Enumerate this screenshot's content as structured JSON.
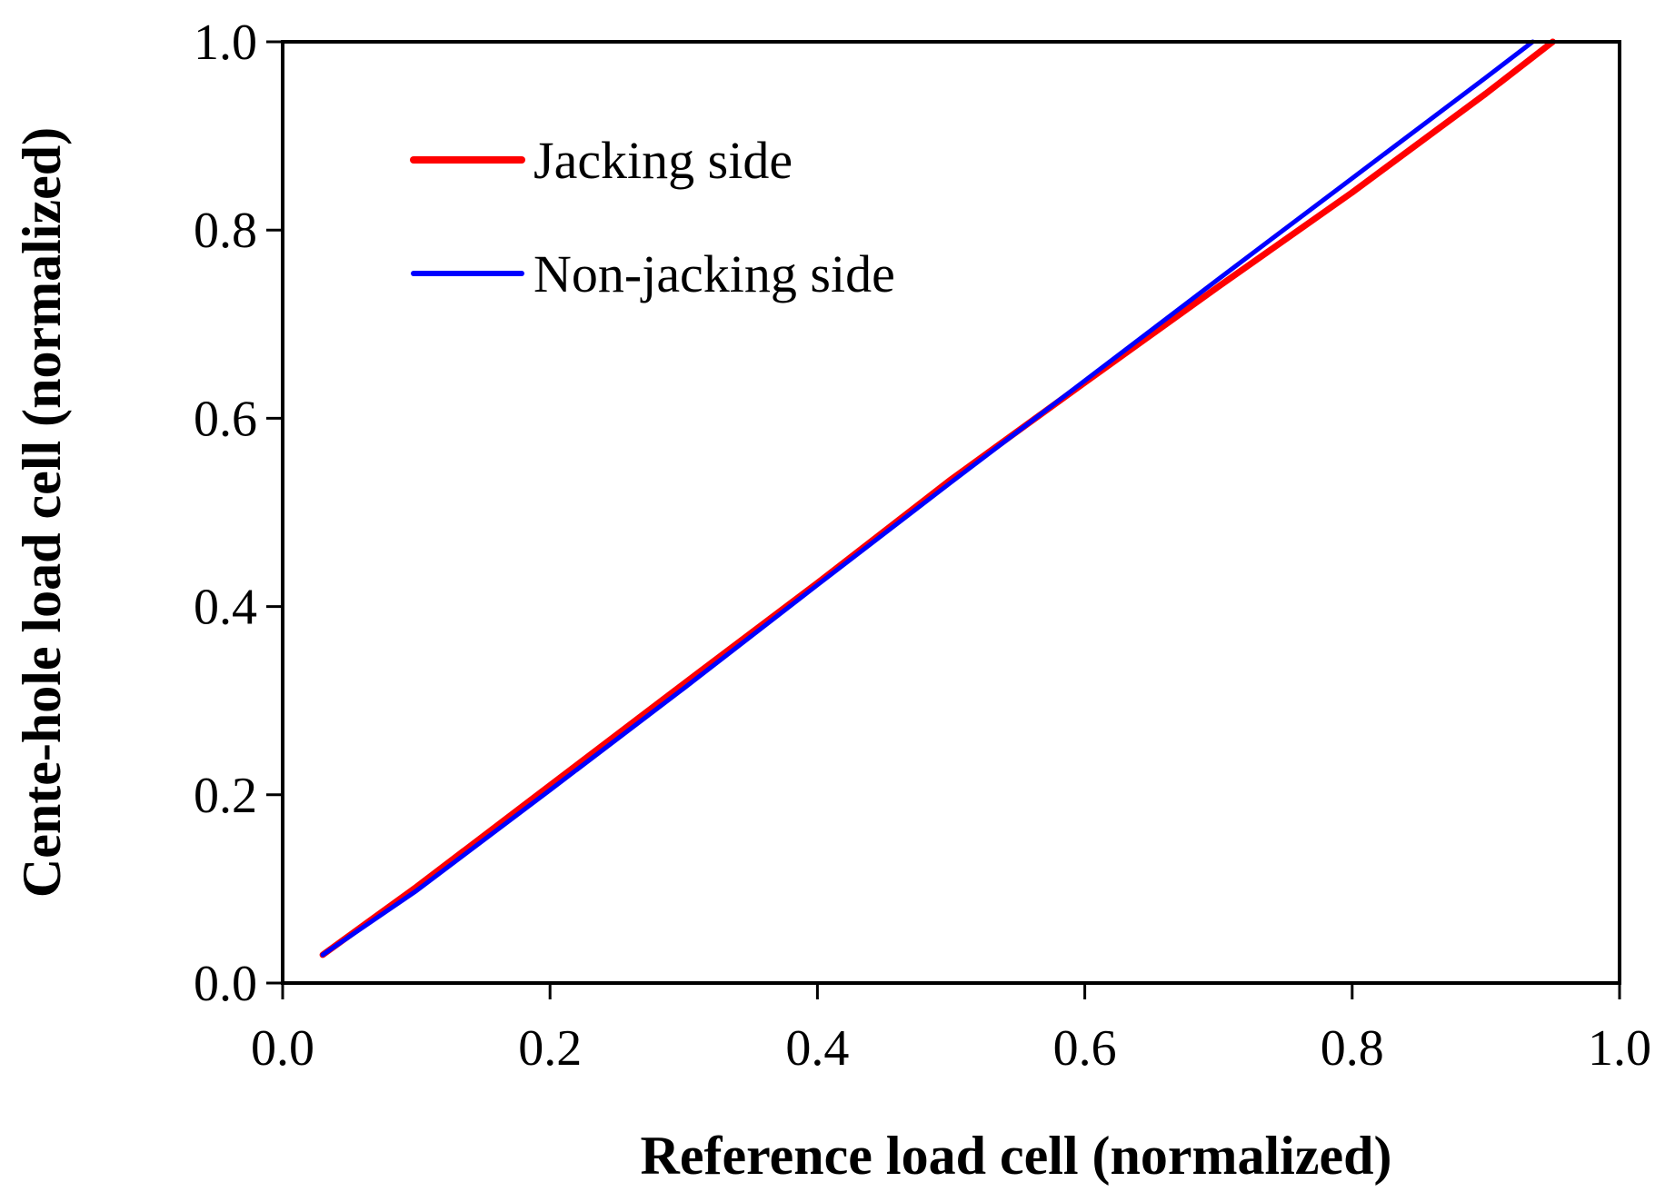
{
  "chart_data": {
    "type": "line",
    "title": "",
    "xlabel": "Reference load cell (normalized)",
    "ylabel": "Cente-hole load cell (normalized)",
    "xlim": [
      0.0,
      1.0
    ],
    "ylim": [
      0.0,
      1.0
    ],
    "x_ticks": [
      "0.0",
      "0.2",
      "0.4",
      "0.6",
      "0.8",
      "1.0"
    ],
    "y_ticks": [
      "0.0",
      "0.2",
      "0.4",
      "0.6",
      "0.8",
      "1.0"
    ],
    "grid": false,
    "legend_position": "top-left",
    "series": [
      {
        "name": "Jacking side",
        "color": "#ff0000",
        "x": [
          0.03,
          0.1,
          0.2,
          0.3,
          0.4,
          0.5,
          0.6,
          0.7,
          0.8,
          0.9,
          0.95
        ],
        "y": [
          0.03,
          0.102,
          0.21,
          0.318,
          0.425,
          0.535,
          0.638,
          0.74,
          0.84,
          0.945,
          1.0
        ]
      },
      {
        "name": "Non-jacking side",
        "color": "#0000ff",
        "x": [
          0.03,
          0.1,
          0.2,
          0.3,
          0.4,
          0.5,
          0.6,
          0.7,
          0.8,
          0.9,
          0.935
        ],
        "y": [
          0.03,
          0.098,
          0.205,
          0.313,
          0.423,
          0.532,
          0.64,
          0.748,
          0.855,
          0.962,
          1.0
        ]
      }
    ]
  }
}
